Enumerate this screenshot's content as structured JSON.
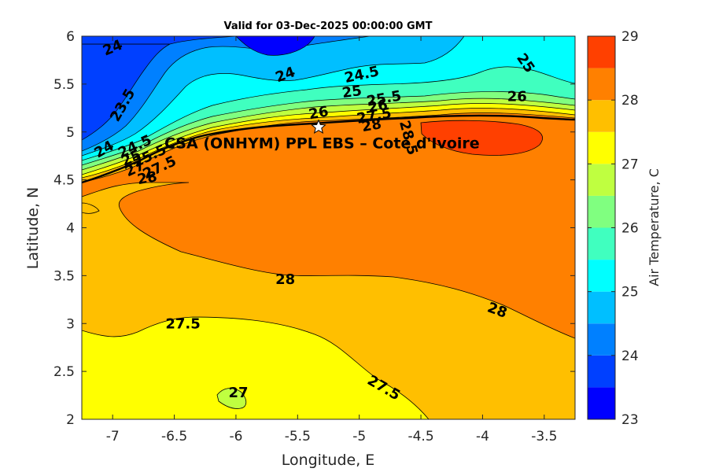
{
  "chart_data": {
    "type": "contour",
    "title": "Valid for 03-Dec-2025 00:00:00 GMT",
    "xlabel": "Longitude, E",
    "ylabel": "Latitude, N",
    "xlim": [
      -7.25,
      -3.25
    ],
    "ylim": [
      2,
      6
    ],
    "x_ticks": [
      -7,
      -6.5,
      -6,
      -5.5,
      -5,
      -4.5,
      -4,
      -3.5
    ],
    "x_tick_labels": [
      "-7",
      "-6.5",
      "-6",
      "-5.5",
      "-5",
      "-4.5",
      "-4",
      "-3.5"
    ],
    "y_ticks": [
      2,
      2.5,
      3,
      3.5,
      4,
      4.5,
      5,
      5.5,
      6
    ],
    "y_tick_labels": [
      "2",
      "2.5",
      "3",
      "3.5",
      "4",
      "4.5",
      "5",
      "5.5",
      "6"
    ],
    "colorbar": {
      "label": "Air Temperature, C",
      "min": 23,
      "max": 29,
      "step": 0.5,
      "tick_values": [
        23,
        24,
        25,
        26,
        27,
        28,
        29
      ],
      "tick_labels": [
        "23",
        "24",
        "25",
        "26",
        "27",
        "28",
        "29"
      ],
      "colors": [
        "#0000ff",
        "#0040ff",
        "#0080ff",
        "#00bfff",
        "#00ffff",
        "#40ffbf",
        "#80ff80",
        "#bfff40",
        "#ffff00",
        "#ffbf00",
        "#ff8000",
        "#ff4000"
      ]
    },
    "site": {
      "name": "CSA (ONHYM) PPL EBS  – Cote d'Ivoire",
      "lon": -5.33,
      "lat": 5.05
    },
    "contour_labels": [
      {
        "text": "24",
        "lon": -7.0,
        "lat": 5.88,
        "angle": -22
      },
      {
        "text": "23.5",
        "lon": -6.92,
        "lat": 5.28,
        "angle": -60
      },
      {
        "text": "24",
        "lon": -5.6,
        "lat": 5.6,
        "angle": -20
      },
      {
        "text": "24.5",
        "lon": -4.98,
        "lat": 5.6,
        "angle": -12
      },
      {
        "text": "25",
        "lon": -5.06,
        "lat": 5.42,
        "angle": -8
      },
      {
        "text": "25.5",
        "lon": -4.8,
        "lat": 5.35,
        "angle": -10
      },
      {
        "text": "26",
        "lon": -4.85,
        "lat": 5.27,
        "angle": -10
      },
      {
        "text": "26",
        "lon": -5.33,
        "lat": 5.2,
        "angle": -10
      },
      {
        "text": "27.5",
        "lon": -4.88,
        "lat": 5.17,
        "angle": -10
      },
      {
        "text": "28",
        "lon": -4.9,
        "lat": 5.07,
        "angle": -10
      },
      {
        "text": "25",
        "lon": -3.65,
        "lat": 5.72,
        "angle": 55
      },
      {
        "text": "26",
        "lon": -3.72,
        "lat": 5.37,
        "angle": 0
      },
      {
        "text": "28.5",
        "lon": -4.6,
        "lat": 4.94,
        "angle": 75
      },
      {
        "text": "24",
        "lon": -7.07,
        "lat": 4.82,
        "angle": -30
      },
      {
        "text": "24.5",
        "lon": -6.82,
        "lat": 4.85,
        "angle": -25
      },
      {
        "text": "25",
        "lon": -6.85,
        "lat": 4.73,
        "angle": -25
      },
      {
        "text": "25.5",
        "lon": -6.7,
        "lat": 4.75,
        "angle": -25
      },
      {
        "text": "27",
        "lon": -6.82,
        "lat": 4.62,
        "angle": -25
      },
      {
        "text": "27.5",
        "lon": -6.62,
        "lat": 4.63,
        "angle": -25
      },
      {
        "text": "28",
        "lon": -6.72,
        "lat": 4.52,
        "angle": -10
      },
      {
        "text": "28",
        "lon": -5.6,
        "lat": 3.46,
        "angle": 0
      },
      {
        "text": "28",
        "lon": -3.88,
        "lat": 3.14,
        "angle": 20
      },
      {
        "text": "27.5",
        "lon": -6.43,
        "lat": 3.0,
        "angle": 0
      },
      {
        "text": "27.5",
        "lon": -4.8,
        "lat": 2.33,
        "angle": 30
      },
      {
        "text": "27",
        "lon": -5.98,
        "lat": 2.28,
        "angle": 0
      }
    ]
  }
}
